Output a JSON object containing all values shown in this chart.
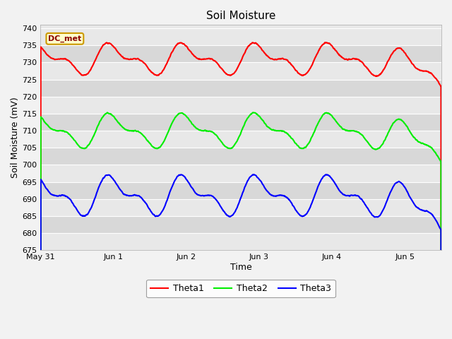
{
  "title": "Soil Moisture",
  "xlabel": "Time",
  "ylabel": "Soil Moisture (mV)",
  "ylim": [
    675,
    741
  ],
  "yticks": [
    675,
    680,
    685,
    690,
    695,
    700,
    705,
    710,
    715,
    720,
    725,
    730,
    735,
    740
  ],
  "annotation": "DC_met",
  "fig_bg_color": "#f2f2f2",
  "band_colors": [
    "#e8e8e8",
    "#d8d8d8"
  ],
  "grid_color": "#ffffff",
  "line_colors": {
    "Theta1": "#ff0000",
    "Theta2": "#00ee00",
    "Theta3": "#0000ff"
  },
  "line_width": 1.5,
  "xtick_labels": [
    "May 31",
    "Jun 1",
    "Jun 2",
    "Jun 3",
    "Jun 4",
    "Jun 5"
  ],
  "xtick_positions": [
    0,
    24,
    48,
    72,
    96,
    120
  ],
  "total_hours": 132
}
